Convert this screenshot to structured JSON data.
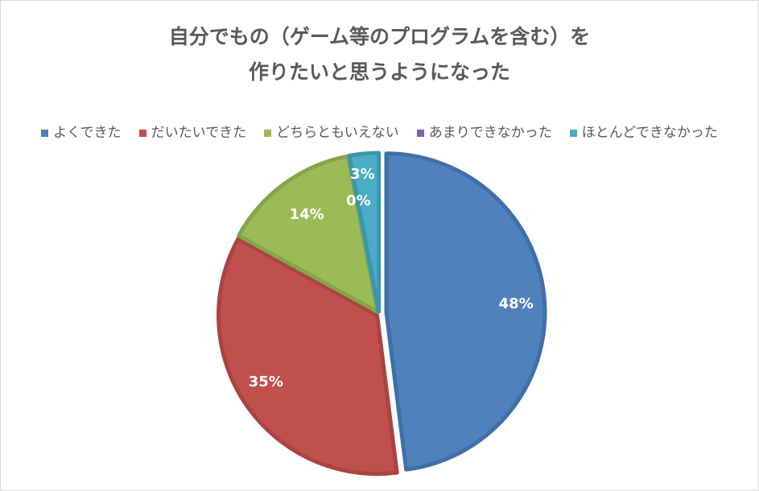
{
  "chart_data": {
    "type": "pie",
    "title_lines": [
      "自分でもの（ゲーム等のプログラムを含む）を",
      "作りたいと思うようになった"
    ],
    "categories": [
      "よくできた",
      "だいたいできた",
      "どちらともいえない",
      "あまりできなかった",
      "ほとんどできなかった"
    ],
    "values": [
      48,
      35,
      14,
      0,
      3
    ],
    "data_labels": [
      "48%",
      "35%",
      "14%",
      "0%",
      "3%"
    ],
    "colors": [
      "#4f81bd",
      "#c0504d",
      "#9bbb59",
      "#8064a2",
      "#4bacc6"
    ],
    "edge_colors": [
      "#3f6fa8",
      "#a94441",
      "#86a54b",
      "#6e5590",
      "#3a96ae"
    ],
    "legend_position": "top",
    "start_angle_deg": 0,
    "direction": "clockwise"
  }
}
